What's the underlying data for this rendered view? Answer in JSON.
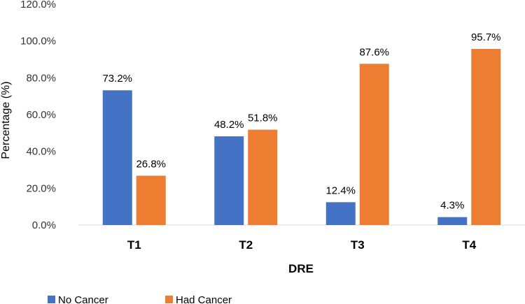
{
  "chart_data": {
    "type": "bar",
    "title": "",
    "xlabel": "DRE",
    "ylabel": "Percentage (%)",
    "ylim": [
      0,
      120
    ],
    "yticks": [
      0,
      20,
      40,
      60,
      80,
      100,
      120
    ],
    "ytick_labels": [
      "0.0%",
      "20.0%",
      "40.0%",
      "60.0%",
      "80.0%",
      "100.0%",
      "120.0%"
    ],
    "categories": [
      "T1",
      "T2",
      "T3",
      "T4"
    ],
    "grid": false,
    "legend_position": "bottom-left",
    "series": [
      {
        "name": "No Cancer",
        "color": "#4472C4",
        "values": [
          73.2,
          48.2,
          12.4,
          4.3
        ],
        "labels": [
          "73.2%",
          "48.2%",
          "12.4%",
          "4.3%"
        ]
      },
      {
        "name": "Had Cancer",
        "color": "#ED7D31",
        "values": [
          26.8,
          51.8,
          87.6,
          95.7
        ],
        "labels": [
          "26.8%",
          "51.8%",
          "87.6%",
          "95.7%"
        ]
      }
    ]
  }
}
